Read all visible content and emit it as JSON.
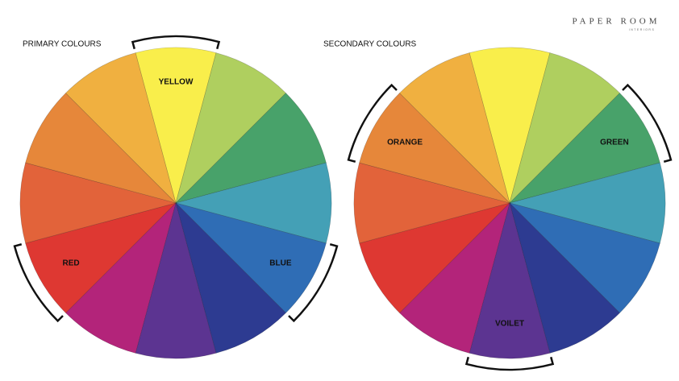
{
  "header": {
    "brand": "PAPER ROOM",
    "tagline": "INTERIORS"
  },
  "wheels": [
    {
      "title": "PRIMARY COLOURS",
      "labels": [
        "YELLOW",
        "RED",
        "BLUE"
      ]
    },
    {
      "title": "SECONDARY COLOURS",
      "labels": [
        "ORANGE",
        "GREEN",
        "VOILET"
      ]
    }
  ]
}
